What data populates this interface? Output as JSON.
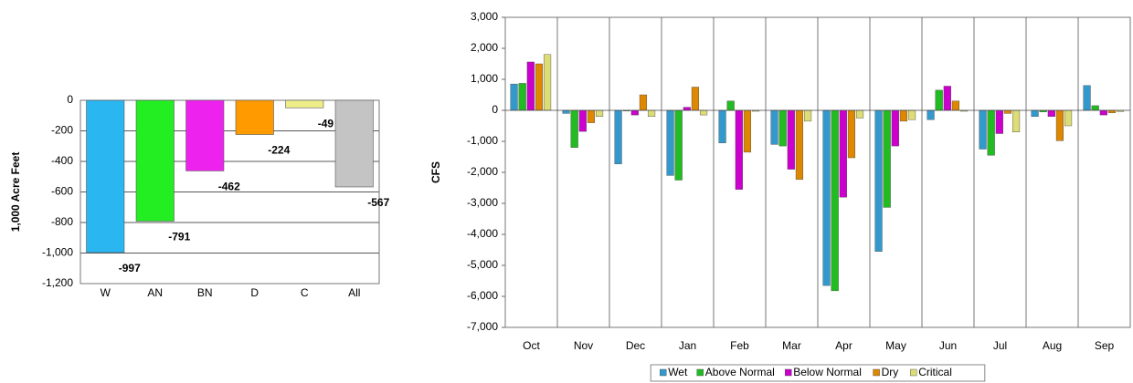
{
  "chart_data": [
    {
      "type": "bar",
      "ylabel": "1,000 Acre Feet",
      "categories": [
        "W",
        "AN",
        "BN",
        "D",
        "C",
        "All"
      ],
      "values": [
        -997,
        -791,
        -462,
        -224,
        -49,
        -567
      ],
      "colors": [
        "#2ab6f0",
        "#22ee22",
        "#ee22ee",
        "#ff9a00",
        "#eeee88",
        "#c4c4c4"
      ],
      "ylim": [
        -1200,
        0
      ],
      "yticks": [
        0,
        -200,
        -400,
        -600,
        -800,
        {
          "value": -1000,
          "label": "-1,000"
        },
        {
          "value": -1200,
          "label": "-1,200"
        }
      ],
      "grid": "y",
      "data_labels": true
    },
    {
      "type": "bar",
      "ylabel": "CFS",
      "categories": [
        "Oct",
        "Nov",
        "Dec",
        "Jan",
        "Feb",
        "Mar",
        "Apr",
        "May",
        "Jun",
        "Jul",
        "Aug",
        "Sep"
      ],
      "series": [
        {
          "name": "Wet",
          "color": "#3399cc",
          "values": [
            850,
            -100,
            -1730,
            -2100,
            -1050,
            -1100,
            -5650,
            -4550,
            -300,
            -1250,
            -200,
            800
          ]
        },
        {
          "name": "Above Normal",
          "color": "#22bb22",
          "values": [
            870,
            -1200,
            -20,
            -2250,
            300,
            -1150,
            -5820,
            -3130,
            650,
            -1450,
            -50,
            150
          ]
        },
        {
          "name": "Below Normal",
          "color": "#cc00cc",
          "values": [
            1560,
            -680,
            -150,
            100,
            -2550,
            -1900,
            -2800,
            -1150,
            780,
            -750,
            -200,
            -150
          ]
        },
        {
          "name": "Dry",
          "color": "#dd8800",
          "values": [
            1500,
            -400,
            500,
            750,
            -1350,
            -2230,
            -1530,
            -350,
            300,
            -100,
            -980,
            -80
          ]
        },
        {
          "name": "Critical",
          "color": "#dddd77",
          "values": [
            1800,
            -200,
            -200,
            -150,
            -30,
            -350,
            -250,
            -300,
            -30,
            -700,
            -500,
            -40
          ]
        }
      ],
      "ylim": [
        -7000,
        3000
      ],
      "yticks": [
        {
          "value": 3000,
          "label": "3,000"
        },
        {
          "value": 2000,
          "label": "2,000"
        },
        {
          "value": 1000,
          "label": "1,000"
        },
        0,
        {
          "value": -1000,
          "label": "-1,000"
        },
        {
          "value": -2000,
          "label": "-2,000"
        },
        {
          "value": -3000,
          "label": "-3,000"
        },
        {
          "value": -4000,
          "label": "-4,000"
        },
        {
          "value": -5000,
          "label": "-5,000"
        },
        {
          "value": -6000,
          "label": "-6,000"
        },
        {
          "value": -7000,
          "label": "-7,000"
        }
      ],
      "grid": "x",
      "legend": "bottom"
    }
  ]
}
